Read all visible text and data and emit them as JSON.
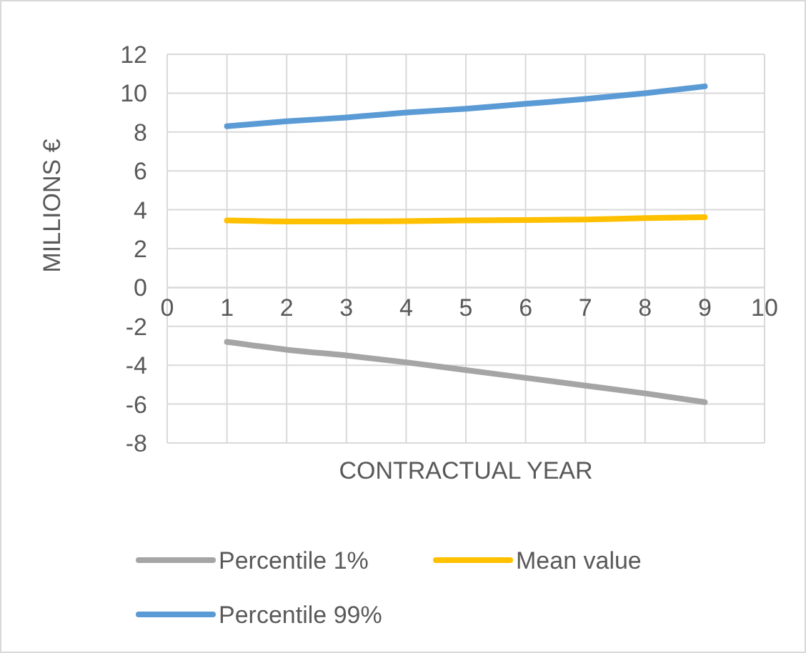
{
  "chart_data": {
    "type": "line",
    "xlabel": "CONTRACTUAL YEAR",
    "ylabel": "MILLIONS €",
    "x": [
      1,
      2,
      3,
      4,
      5,
      6,
      7,
      8,
      9
    ],
    "series": [
      {
        "name": "Percentile 1%",
        "color": "#a5a5a5",
        "values": [
          -2.8,
          -3.2,
          -3.5,
          -3.85,
          -4.25,
          -4.65,
          -5.05,
          -5.45,
          -5.9
        ]
      },
      {
        "name": "Mean value",
        "color": "#ffc000",
        "values": [
          3.45,
          3.4,
          3.4,
          3.42,
          3.45,
          3.47,
          3.5,
          3.57,
          3.62
        ]
      },
      {
        "name": "Percentile 99%",
        "color": "#5b9bd5",
        "values": [
          8.3,
          8.55,
          8.75,
          9.0,
          9.2,
          9.45,
          9.7,
          10.0,
          10.35
        ]
      }
    ],
    "xlim": [
      0,
      10
    ],
    "xticks": [
      0,
      1,
      2,
      3,
      4,
      5,
      6,
      7,
      8,
      9,
      10
    ],
    "ylim": [
      -8,
      12
    ],
    "yticks": [
      -8,
      -6,
      -4,
      -2,
      0,
      2,
      4,
      6,
      8,
      10,
      12
    ],
    "grid": true,
    "legend": "bottom",
    "marker": "none",
    "line_style": "solid"
  }
}
